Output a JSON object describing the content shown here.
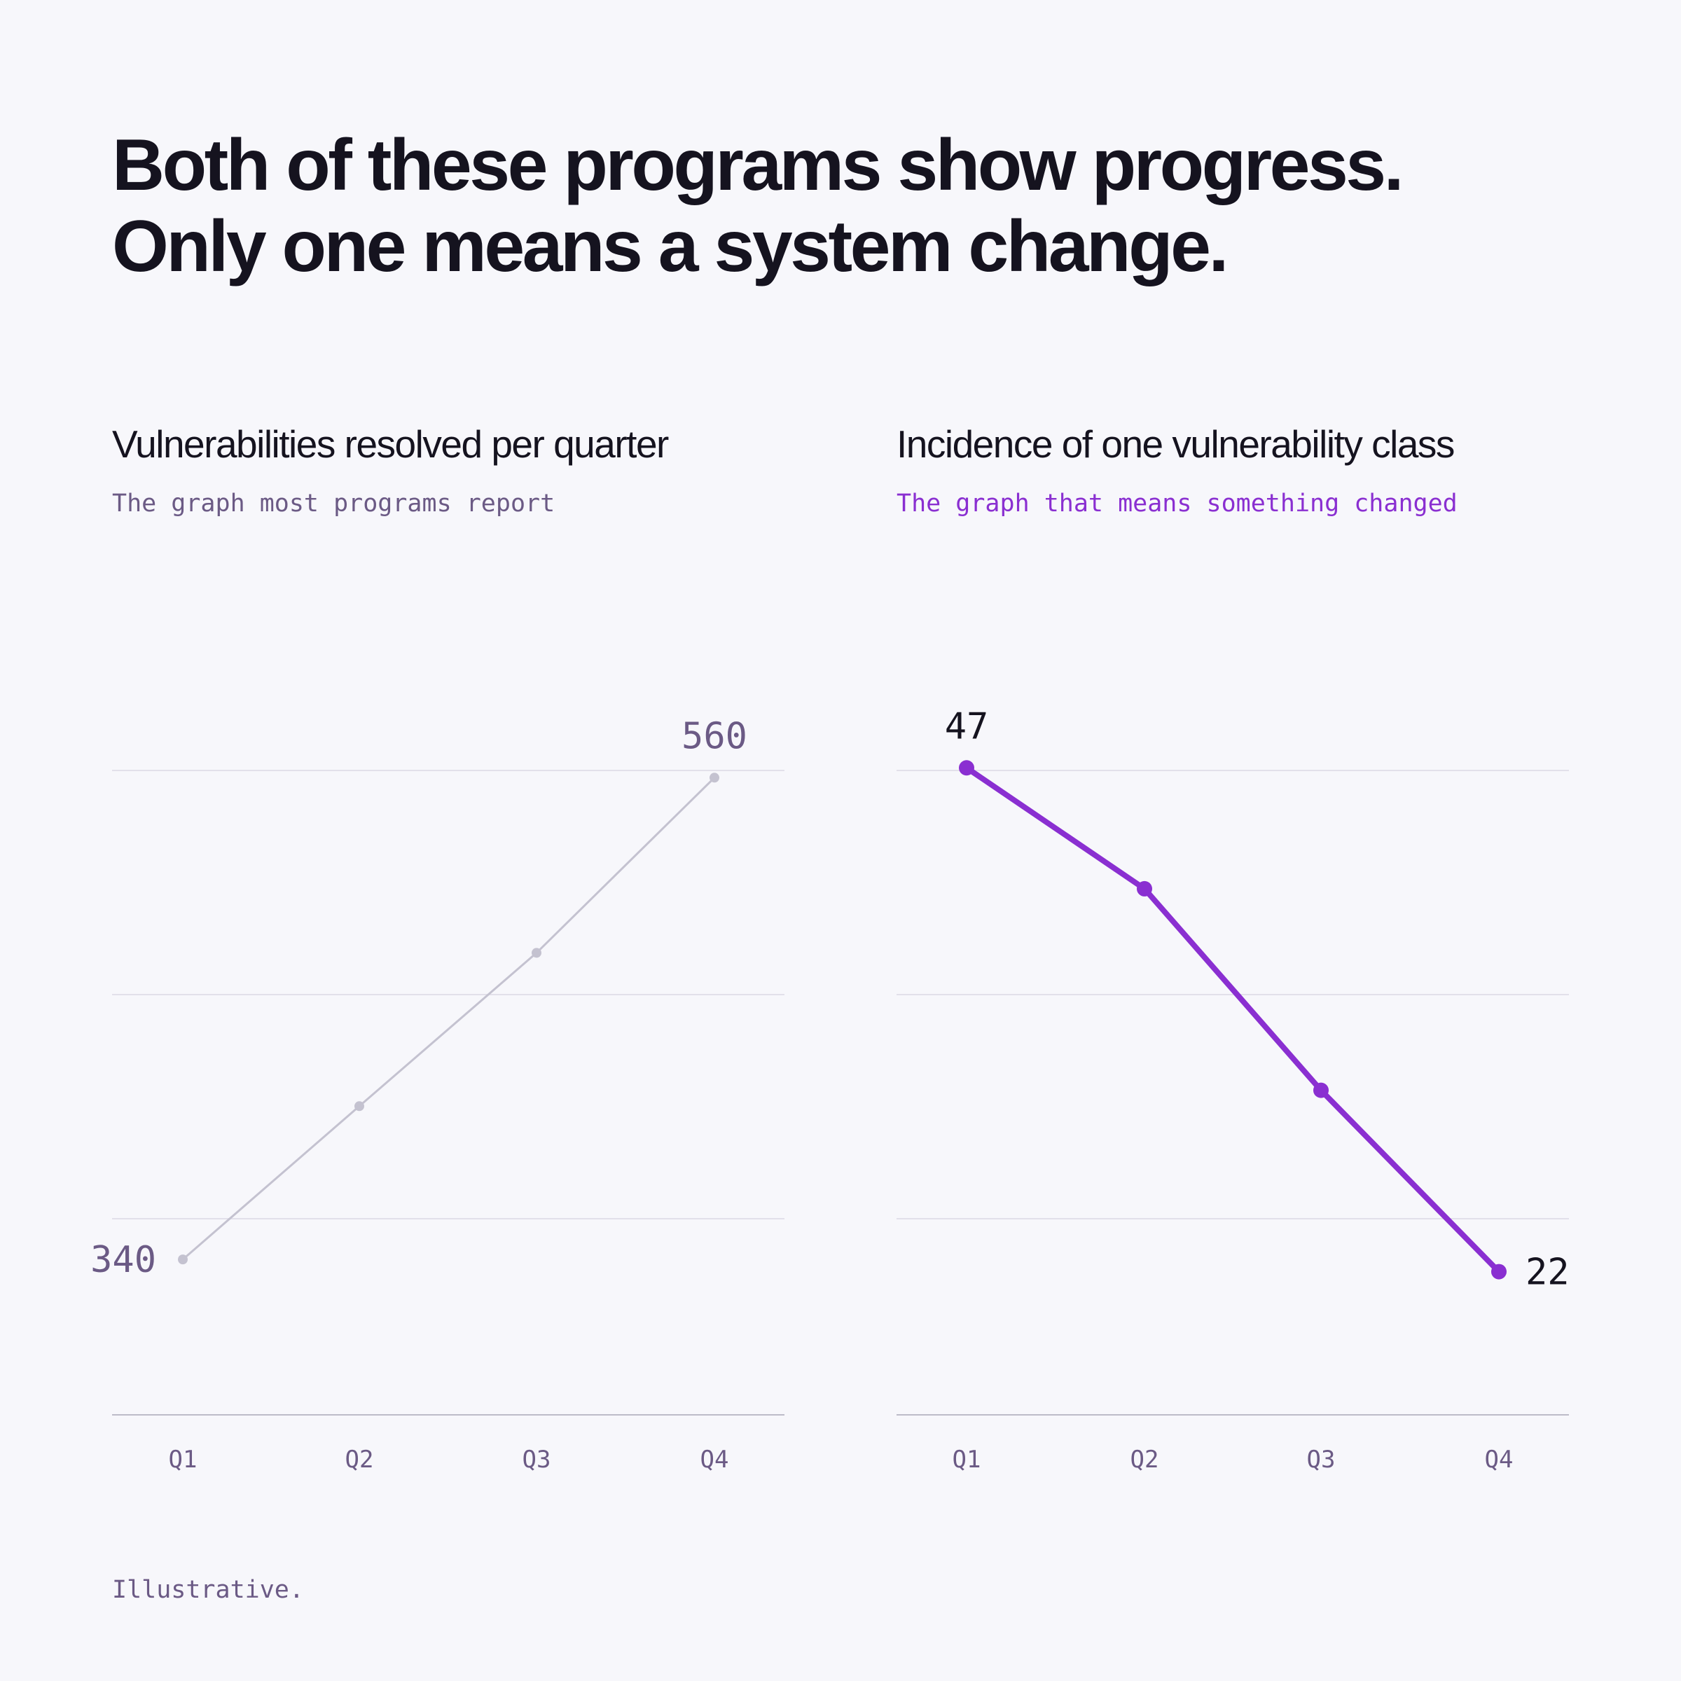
{
  "headline": {
    "line1": "Both of these programs show progress.",
    "line2": "Only one means a system change."
  },
  "footnote": "Illustrative.",
  "colors": {
    "background": "#f7f7fb",
    "text": "#15131f",
    "muted": "#6b5a85",
    "accent": "#8a2fd1",
    "muted_line": "#c4c2d0",
    "grid": "#e2e0ea",
    "axis": "#bdbbc8"
  },
  "chart_data": [
    {
      "type": "line",
      "title": "Vulnerabilities resolved per quarter",
      "subtitle": "The graph most programs report",
      "categories": [
        "Q1",
        "Q2",
        "Q3",
        "Q4"
      ],
      "series": [
        {
          "values": [
            340,
            410,
            480,
            560
          ]
        }
      ],
      "end_labels": [
        "340",
        "560"
      ],
      "ylim": [
        270,
        570
      ],
      "grid": true,
      "style": "muted"
    },
    {
      "type": "line",
      "title": "Incidence of one vulnerability class",
      "subtitle": "The graph that means something changed",
      "categories": [
        "Q1",
        "Q2",
        "Q3",
        "Q4"
      ],
      "series": [
        {
          "values": [
            47,
            41,
            31,
            22
          ]
        }
      ],
      "end_labels": [
        "47",
        "22"
      ],
      "ylim": [
        15,
        47.6
      ],
      "grid": true,
      "style": "accent"
    }
  ]
}
